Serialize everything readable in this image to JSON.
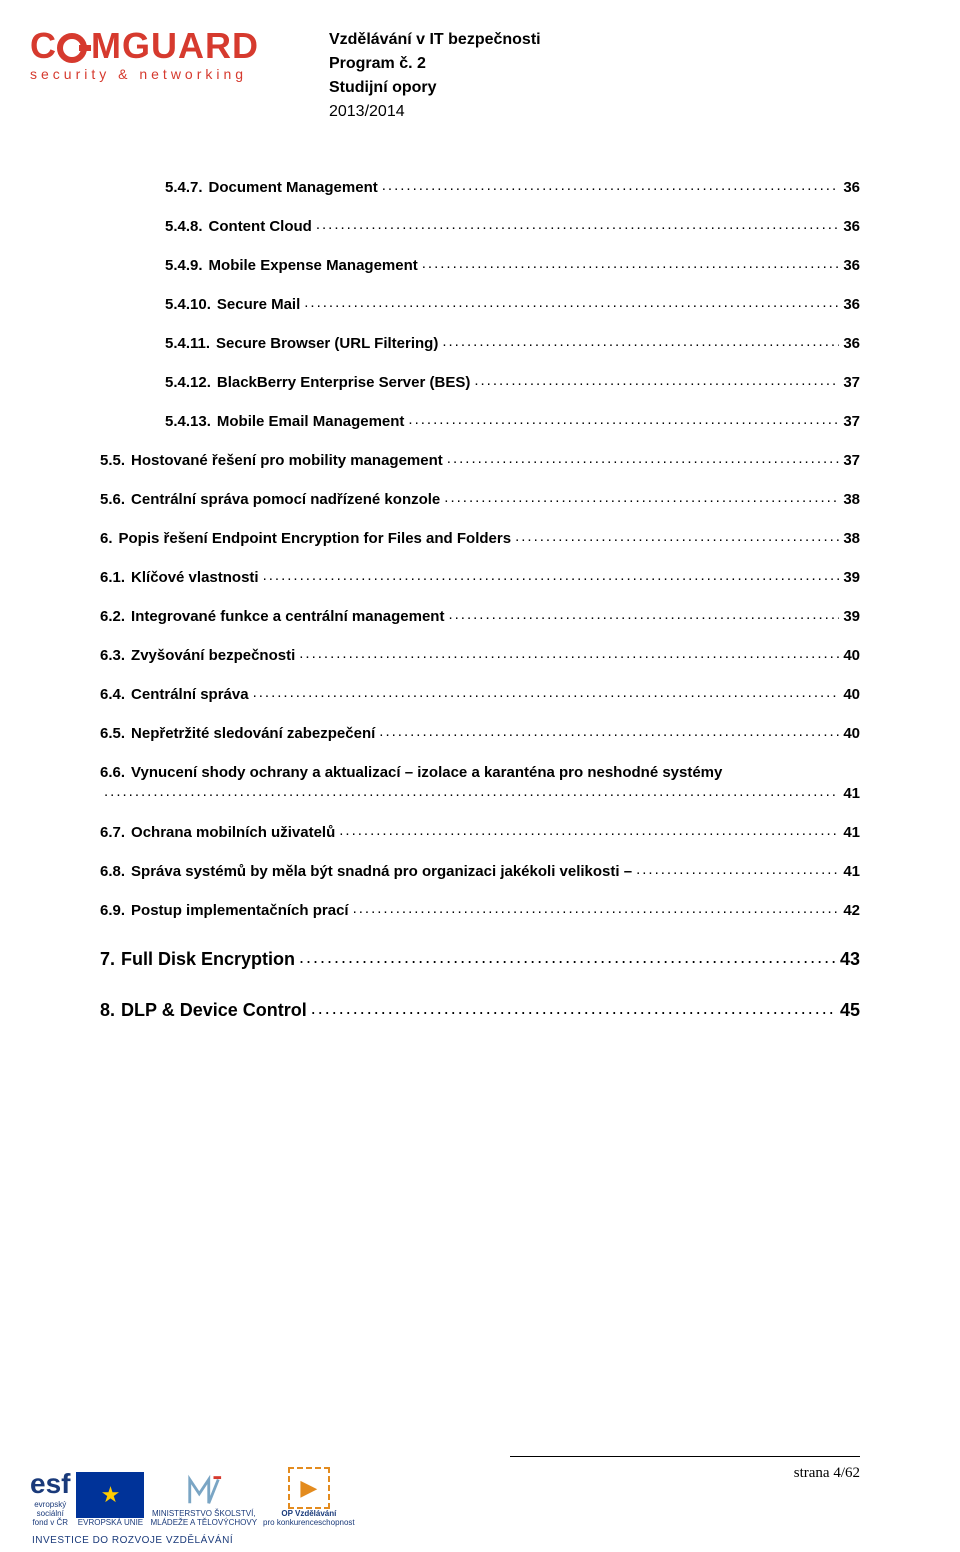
{
  "header": {
    "logo_main": "COMGUARD",
    "logo_sub": "security & networking",
    "line1": "Vzdělávání v IT bezpečnosti",
    "line2": "Program č. 2",
    "line3": "Studijní opory",
    "year": "2013/2014"
  },
  "toc": [
    {
      "num": "5.4.7.",
      "title": "Document Management",
      "page": "36",
      "indent": true
    },
    {
      "num": "5.4.8.",
      "title": "Content Cloud",
      "page": "36",
      "indent": true
    },
    {
      "num": "5.4.9.",
      "title": "Mobile Expense Management",
      "page": "36",
      "indent": true
    },
    {
      "num": "5.4.10.",
      "title": "Secure Mail",
      "page": "36",
      "indent": true
    },
    {
      "num": "5.4.11.",
      "title": "Secure Browser (URL Filtering)",
      "page": "36",
      "indent": true
    },
    {
      "num": "5.4.12.",
      "title": "BlackBerry Enterprise Server (BES)",
      "page": "37",
      "indent": true
    },
    {
      "num": "5.4.13.",
      "title": "Mobile Email Management",
      "page": "37",
      "indent": true
    },
    {
      "num": "5.5.",
      "title": "Hostované řešení pro mobility management",
      "page": "37",
      "indent": false
    },
    {
      "num": "5.6.",
      "title": "Centrální správa pomocí nadřízené konzole",
      "page": "38",
      "indent": false
    },
    {
      "num": "6.",
      "title": "Popis řešení Endpoint Encryption for Files and Folders",
      "page": "38",
      "indent": false
    },
    {
      "num": "6.1.",
      "title": "Klíčové vlastnosti",
      "page": "39",
      "indent": false
    },
    {
      "num": "6.2.",
      "title": "Integrované funkce a centrální management",
      "page": "39",
      "indent": false
    },
    {
      "num": "6.3.",
      "title": "Zvyšování bezpečnosti",
      "page": "40",
      "indent": false
    },
    {
      "num": "6.4.",
      "title": "Centrální správa",
      "page": "40",
      "indent": false
    },
    {
      "num": "6.5.",
      "title": "Nepřetržité sledování zabezpečení",
      "page": "40",
      "indent": false
    },
    {
      "num": "6.6.",
      "title": "Vynucení shody ochrany a aktualizací – izolace a karanténa pro neshodné systémy",
      "page": "41",
      "indent": false,
      "wrap": true
    },
    {
      "num": "6.7.",
      "title": "Ochrana mobilních uživatelů",
      "page": "41",
      "indent": false
    },
    {
      "num": "6.8.",
      "title": "Správa systémů by měla být snadná pro organizaci jakékoli velikosti –",
      "page": "41",
      "indent": false
    },
    {
      "num": "6.9.",
      "title": "Postup implementačních prací",
      "page": "42",
      "indent": false
    }
  ],
  "sections": [
    {
      "num": "7.",
      "title": "Full Disk Encryption",
      "page": "43"
    },
    {
      "num": "8.",
      "title": "DLP & Device Control",
      "page": "45"
    }
  ],
  "footer": {
    "esf_lines": [
      "evropský",
      "sociální",
      "fond v ČR"
    ],
    "eu_line": "EVROPSKÁ UNIE",
    "msmt_lines": [
      "MINISTERSTVO ŠKOLSTVÍ,",
      "MLÁDEŽE A TĚLOVÝCHOVY"
    ],
    "opvk_lines": [
      "OP Vzdělávání",
      "pro konkurenceschopnost"
    ],
    "invest": "INVESTICE DO ROZVOJE VZDĚLÁVÁNÍ",
    "page_label": "strana 4/62"
  }
}
